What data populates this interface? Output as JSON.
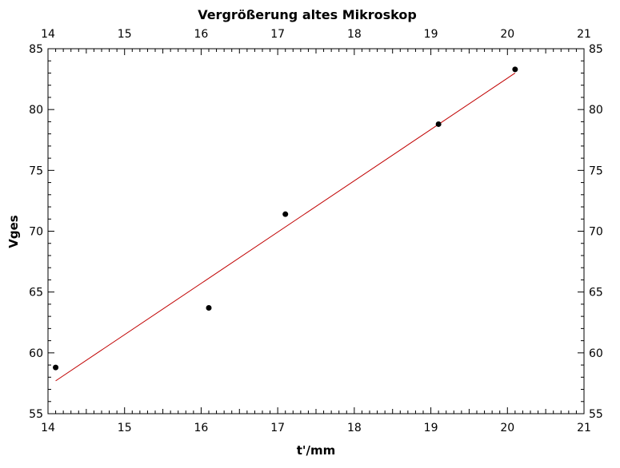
{
  "chart_data": {
    "type": "scatter",
    "title": "Vergrößerung altes Mikroskop",
    "xlabel": "t'/mm",
    "ylabel": "Vges",
    "xlim": [
      14,
      21
    ],
    "ylim": [
      55,
      85
    ],
    "x_ticks": [
      14,
      15,
      16,
      17,
      18,
      19,
      20,
      21
    ],
    "y_ticks": [
      55,
      60,
      65,
      70,
      75,
      80,
      85
    ],
    "grid": false,
    "legend": "none",
    "series": [
      {
        "points": [
          {
            "x": 14.1,
            "y": 58.8
          },
          {
            "x": 16.1,
            "y": 63.7
          },
          {
            "x": 17.1,
            "y": 71.4
          },
          {
            "x": 19.1,
            "y": 78.8
          },
          {
            "x": 20.1,
            "y": 83.3
          }
        ],
        "marker_color": "#000000"
      }
    ],
    "fit_line": {
      "x": [
        14.1,
        20.1
      ],
      "y": [
        57.7,
        83.0
      ],
      "color": "#c00000"
    }
  }
}
